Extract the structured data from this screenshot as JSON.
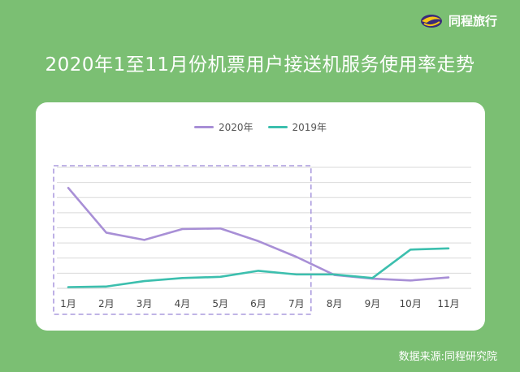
{
  "brand": {
    "name": "同程旅行",
    "icon": "tongcheng-logo-icon"
  },
  "title": "2020年1至11月份机票用户接送机服务使用率走势",
  "source": "数据来源:同程研究院",
  "colors": {
    "background": "#7bbf73",
    "card": "#ffffff",
    "series_2020": "#a88fd6",
    "series_2019": "#3cbfae",
    "highlight_box": "#9a86d8",
    "grid": "#d9d9d9"
  },
  "chart_data": {
    "type": "line",
    "categories": [
      "1月",
      "2月",
      "3月",
      "4月",
      "5月",
      "6月",
      "7月",
      "8月",
      "9月",
      "10月",
      "11月"
    ],
    "series": [
      {
        "name": "2020年",
        "values": [
          8.3,
          4.6,
          4.0,
          4.9,
          4.95,
          3.9,
          2.6,
          1.1,
          0.8,
          0.65,
          0.9
        ]
      },
      {
        "name": "2019年",
        "values": [
          0.1,
          0.15,
          0.6,
          0.85,
          0.95,
          1.45,
          1.15,
          1.15,
          0.85,
          3.2,
          3.3
        ]
      }
    ],
    "ylim": [
      0,
      10
    ],
    "y_gridlines": 8,
    "y_axis_labels_shown": false,
    "legend_position": "top-center",
    "highlight_range": [
      "1月",
      "7月"
    ],
    "grid": true
  }
}
